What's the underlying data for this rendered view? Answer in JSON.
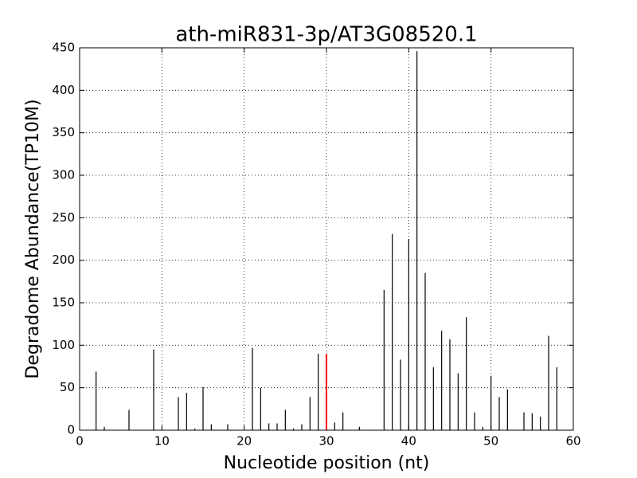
{
  "chart_data": {
    "type": "stem",
    "title": "ath-miR831-3p/AT3G08520.1",
    "xlabel": "Nucleotide position (nt)",
    "ylabel": "Degradome Abundance(TP10M)",
    "series": [
      {
        "color": "#000000",
        "x": [
          2,
          3,
          6,
          9,
          12,
          13,
          14,
          15,
          16,
          18,
          21,
          22,
          23,
          24,
          25,
          26,
          27,
          28,
          29,
          31,
          32,
          34,
          37,
          38,
          39,
          40,
          41,
          42,
          43,
          44,
          45,
          46,
          47,
          48,
          49,
          50,
          51,
          52,
          54,
          55,
          56,
          57,
          58
        ],
        "values": [
          69,
          4,
          24,
          95,
          39,
          44,
          2,
          51,
          7,
          7,
          97,
          50,
          8,
          8,
          24,
          2,
          7,
          39,
          90,
          9,
          21,
          4,
          165,
          231,
          83,
          225,
          446,
          185,
          74,
          117,
          107,
          67,
          133,
          21,
          4,
          64,
          39,
          48,
          21,
          20,
          16,
          111,
          74
        ]
      },
      {
        "color": "#ff0000",
        "x": [
          30
        ],
        "values": [
          90
        ]
      }
    ],
    "xlim": [
      0,
      60
    ],
    "ylim": [
      0,
      450
    ],
    "xticks": [
      0,
      10,
      20,
      30,
      40,
      50,
      60
    ],
    "yticks": [
      0,
      50,
      100,
      150,
      200,
      250,
      300,
      350,
      400,
      450
    ],
    "grid": true
  }
}
